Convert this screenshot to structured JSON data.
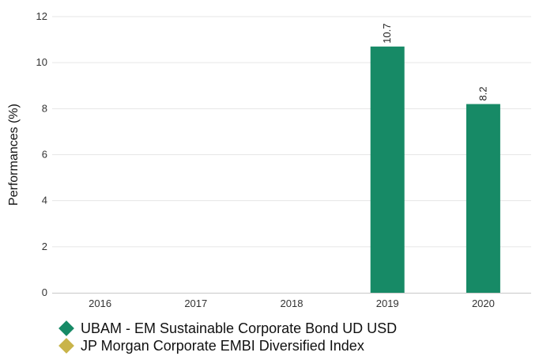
{
  "chart_data": {
    "type": "bar",
    "categories": [
      "2016",
      "2017",
      "2018",
      "2019",
      "2020"
    ],
    "series": [
      {
        "name": "UBAM - EM Sustainable Corporate Bond UD USD",
        "values": [
          null,
          null,
          null,
          10.7,
          8.2
        ],
        "data_labels": [
          "",
          "",
          "",
          "10.7",
          "8.2"
        ],
        "color": "#178a66"
      },
      {
        "name": "JP Morgan Corporate EMBI Diversified Index",
        "values": [
          null,
          null,
          null,
          null,
          null
        ],
        "color": "#c9b44a"
      }
    ],
    "ylabel": "Performances (%)",
    "ylim": [
      0,
      12
    ],
    "yticks": [
      "0",
      "2",
      "4",
      "6",
      "8",
      "10",
      "12"
    ],
    "grid": true,
    "legend": "bottom-left"
  }
}
